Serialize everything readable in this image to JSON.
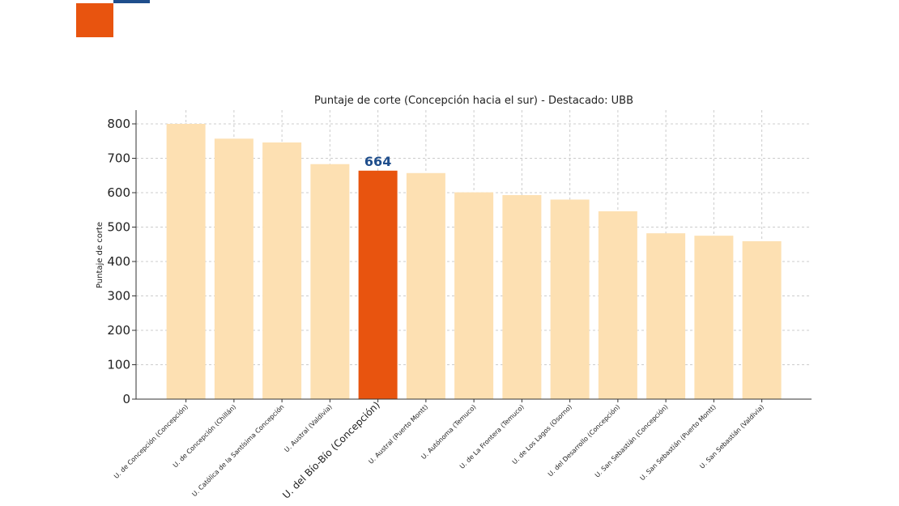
{
  "decor": {
    "accent_orange": "#e8540f",
    "accent_blue": "#1f4e8c"
  },
  "chart_data": {
    "type": "bar",
    "title": "Puntaje de corte (Concepción hacia el sur) - Destacado: UBB",
    "xlabel": "",
    "ylabel": "Puntaje de corte",
    "ylim": [
      0,
      840
    ],
    "yticks": [
      0,
      100,
      200,
      300,
      400,
      500,
      600,
      700,
      800
    ],
    "grid": true,
    "categories": [
      "U. de Concepción (Concepción)",
      "U. de Concepción (Chillán)",
      "U. Católica de la Santísima Concepción",
      "U. Austral (Valdivia)",
      "U. del Bío-Bío (Concepción)",
      "U. Austral (Puerto Montt)",
      "U. Autónoma (Temuco)",
      "U. de La Frontera (Temuco)",
      "U. de Los Lagos (Osorno)",
      "U. del Desarrollo (Concepción)",
      "U. San Sebastián (Concepción)",
      "U. San Sebastián (Puerto Montt)",
      "U. San Sebastián (Valdivia)"
    ],
    "values": [
      800,
      757,
      746,
      683,
      664,
      657,
      601,
      593,
      580,
      546,
      482,
      475,
      459
    ],
    "highlight_index": 4,
    "highlight_label": "664",
    "colors": {
      "default": "#fde0b2",
      "highlight": "#e8540f",
      "label": "#1f4e8c"
    }
  }
}
